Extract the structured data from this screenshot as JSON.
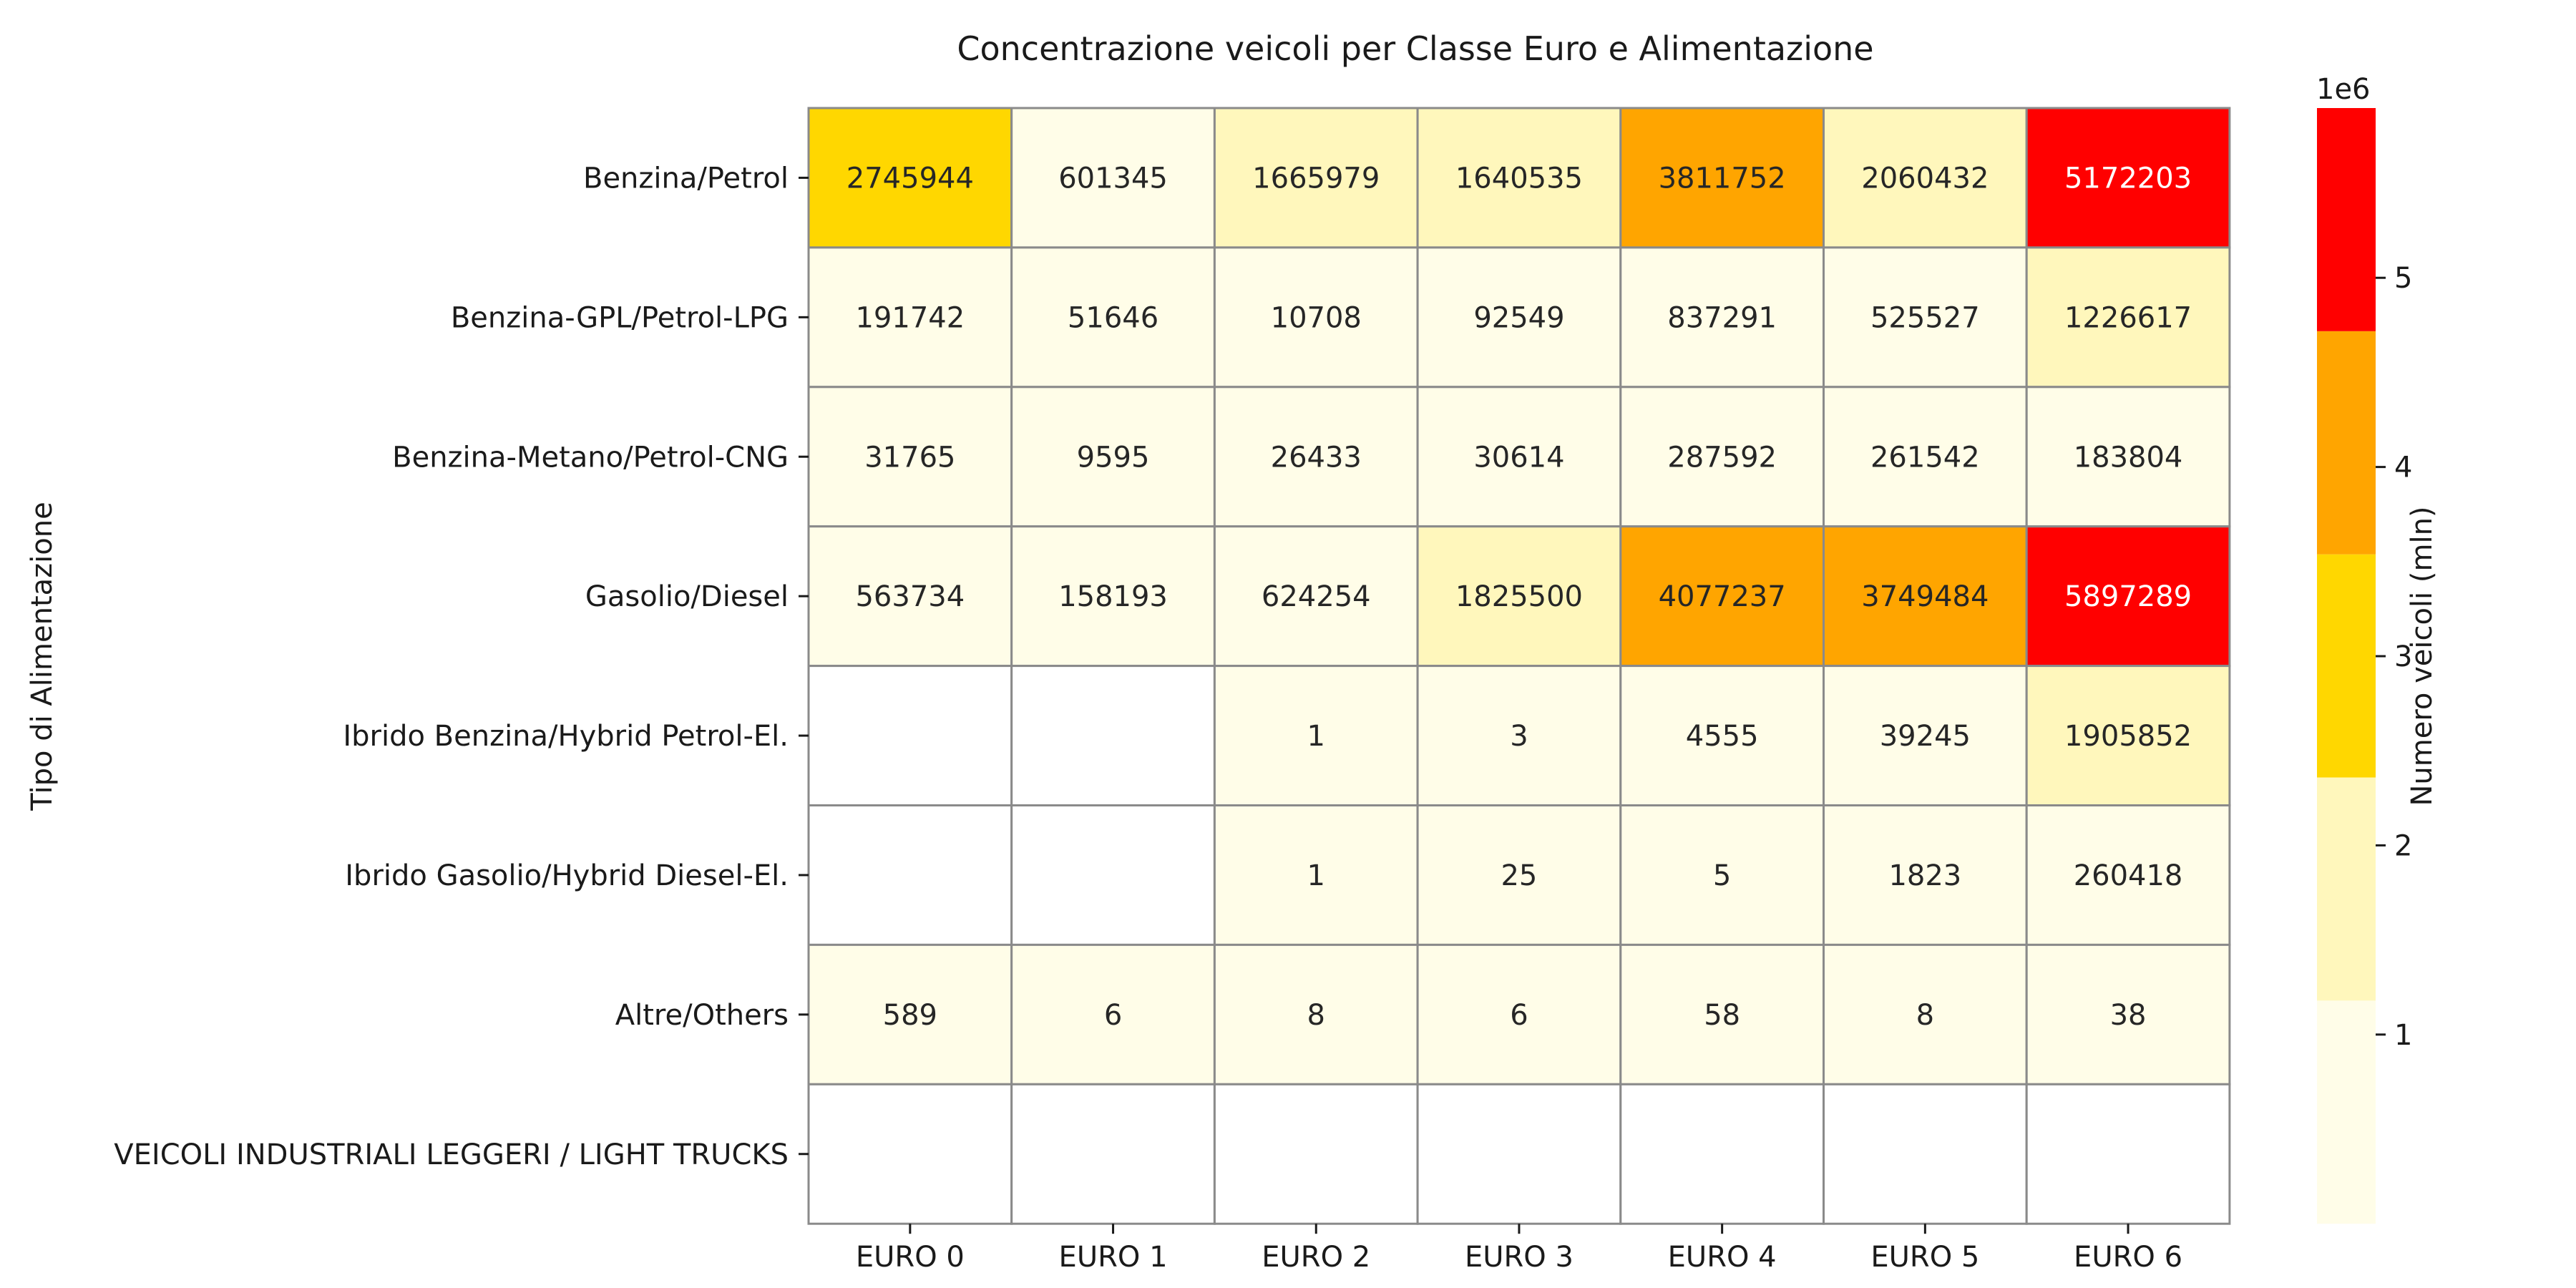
{
  "chart_data": {
    "type": "heatmap",
    "title": "Concentrazione veicoli per Classe Euro e Alimentazione",
    "ylabel": "Tipo di Alimentazione",
    "xlabel": "",
    "x_categories": [
      "EURO 0",
      "EURO 1",
      "EURO 2",
      "EURO 3",
      "EURO 4",
      "EURO 5",
      "EURO 6"
    ],
    "y_categories": [
      "Benzina/Petrol",
      "Benzina-GPL/Petrol-LPG",
      "Benzina-Metano/Petrol-CNG",
      "Gasolio/Diesel",
      "Ibrido Benzina/Hybrid Petrol-El.",
      "Ibrido Gasolio/Hybrid Diesel-El.",
      "Altre/Others",
      "VEICOLI INDUSTRIALI LEGGERI / LIGHT TRUCKS"
    ],
    "values": [
      [
        2745944,
        601345,
        1665979,
        1640535,
        3811752,
        2060432,
        5172203
      ],
      [
        191742,
        51646,
        10708,
        92549,
        837291,
        525527,
        1226617
      ],
      [
        31765,
        9595,
        26433,
        30614,
        287592,
        261542,
        183804
      ],
      [
        563734,
        158193,
        624254,
        1825500,
        4077237,
        3749484,
        5897289
      ],
      [
        null,
        null,
        1,
        3,
        4555,
        39245,
        1905852
      ],
      [
        null,
        null,
        1,
        25,
        5,
        1823,
        260418
      ],
      [
        589,
        6,
        8,
        6,
        58,
        8,
        38
      ],
      [
        null,
        null,
        null,
        null,
        null,
        null,
        null
      ]
    ],
    "colorbar": {
      "label": "Numero veicoli (mln)",
      "offset_label": "1e6",
      "ticks": [
        1,
        2,
        3,
        4,
        5
      ],
      "range": [
        0,
        5897289
      ],
      "colors": [
        "#fffde8",
        "#fff7bc",
        "#ffd700",
        "#ffa500",
        "#ff0000"
      ]
    },
    "grid": true
  }
}
